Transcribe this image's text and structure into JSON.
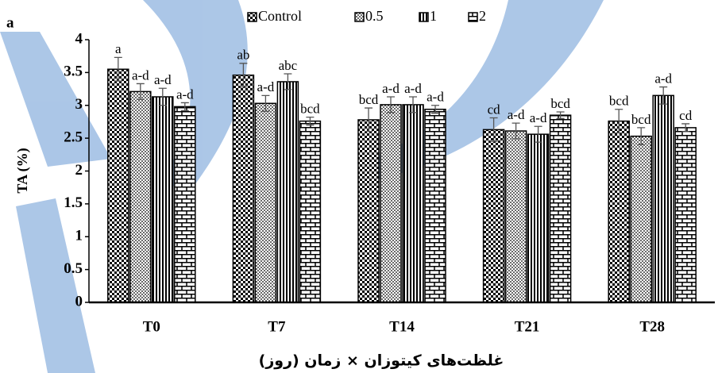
{
  "chart_data": {
    "type": "bar",
    "panel_label": "a",
    "y_label": "TA (%)",
    "x_label": "غلظت‌های کیتوزان × زمان (روز)",
    "categories": [
      "T0",
      "T7",
      "T14",
      "T21",
      "T28"
    ],
    "ylim": [
      0,
      4
    ],
    "yticks": [
      0,
      0.5,
      1,
      1.5,
      2,
      2.5,
      3,
      3.5,
      4
    ],
    "grid": false,
    "series": [
      {
        "name": "Control",
        "color": "#000000",
        "pattern": "checker",
        "values": [
          3.55,
          3.46,
          2.78,
          2.63,
          2.76
        ],
        "errors": [
          0.18,
          0.18,
          0.18,
          0.18,
          0.18
        ],
        "letters": [
          "a",
          "ab",
          "bcd",
          "cd",
          "bcd"
        ]
      },
      {
        "name": "0.5",
        "color": "#000000",
        "pattern": "dots",
        "values": [
          3.21,
          3.03,
          3.01,
          2.61,
          2.53
        ],
        "errors": [
          0.12,
          0.12,
          0.12,
          0.12,
          0.13
        ],
        "letters": [
          "a-d",
          "a-d",
          "a-d",
          "a-d",
          "bcd"
        ]
      },
      {
        "name": "1",
        "color": "#000000",
        "pattern": "vstripes",
        "values": [
          3.13,
          3.36,
          3.01,
          2.56,
          3.15
        ],
        "errors": [
          0.13,
          0.12,
          0.12,
          0.12,
          0.13
        ],
        "letters": [
          "a-d",
          "abc",
          "a-d",
          "a-d",
          "a-d"
        ]
      },
      {
        "name": "2",
        "color": "#000000",
        "pattern": "brick",
        "values": [
          2.98,
          2.76,
          2.94,
          2.85,
          2.66
        ],
        "errors": [
          0.06,
          0.06,
          0.06,
          0.05,
          0.06
        ],
        "letters": [
          "a-d",
          "bcd",
          "a-d",
          "bcd",
          "cd"
        ]
      }
    ]
  }
}
